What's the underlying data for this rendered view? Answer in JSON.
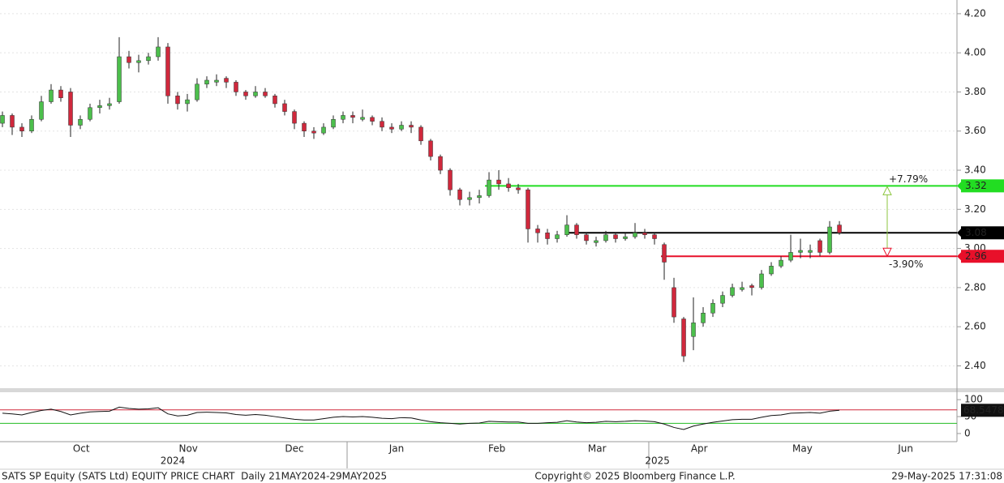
{
  "chart_data": [
    {
      "type": "candlestick",
      "up_color": "#4cbf4c",
      "down_color": "#d0283c",
      "x": [
        0,
        1,
        2,
        3,
        4,
        5,
        6,
        7,
        8,
        9,
        10,
        11,
        12,
        13,
        14,
        15,
        16,
        17,
        18,
        19,
        20,
        21,
        22,
        23,
        24,
        25,
        26,
        27,
        28,
        29,
        30,
        31,
        32,
        33,
        34,
        35,
        36,
        37,
        38,
        39,
        40,
        41,
        42,
        43,
        44,
        45,
        46,
        47,
        48,
        49,
        50,
        51,
        52,
        53,
        54,
        55,
        56,
        57,
        58,
        59,
        60,
        61,
        62,
        63,
        64,
        65,
        66,
        67,
        68,
        69,
        70,
        71,
        72,
        73,
        74,
        75,
        76,
        77,
        78,
        79,
        80,
        81,
        82,
        83,
        84,
        85,
        86
      ],
      "ohlc": [
        [
          3.64,
          3.7,
          3.62,
          3.68
        ],
        [
          3.68,
          3.69,
          3.58,
          3.62
        ],
        [
          3.62,
          3.64,
          3.57,
          3.6
        ],
        [
          3.6,
          3.68,
          3.59,
          3.66
        ],
        [
          3.66,
          3.78,
          3.65,
          3.75
        ],
        [
          3.75,
          3.84,
          3.74,
          3.81
        ],
        [
          3.81,
          3.83,
          3.75,
          3.77
        ],
        [
          3.8,
          3.82,
          3.57,
          3.63
        ],
        [
          3.63,
          3.68,
          3.61,
          3.66
        ],
        [
          3.66,
          3.74,
          3.65,
          3.72
        ],
        [
          3.72,
          3.76,
          3.69,
          3.73
        ],
        [
          3.73,
          3.77,
          3.71,
          3.74
        ],
        [
          3.75,
          4.08,
          3.74,
          3.98
        ],
        [
          3.98,
          4.01,
          3.92,
          3.95
        ],
        [
          3.95,
          3.99,
          3.9,
          3.96
        ],
        [
          3.96,
          4.0,
          3.94,
          3.98
        ],
        [
          3.98,
          4.08,
          3.96,
          4.03
        ],
        [
          4.03,
          4.05,
          3.74,
          3.78
        ],
        [
          3.78,
          3.8,
          3.71,
          3.74
        ],
        [
          3.74,
          3.79,
          3.7,
          3.76
        ],
        [
          3.76,
          3.87,
          3.75,
          3.84
        ],
        [
          3.84,
          3.88,
          3.82,
          3.86
        ],
        [
          3.85,
          3.89,
          3.83,
          3.86
        ],
        [
          3.87,
          3.88,
          3.82,
          3.85
        ],
        [
          3.85,
          3.86,
          3.78,
          3.8
        ],
        [
          3.8,
          3.81,
          3.76,
          3.78
        ],
        [
          3.78,
          3.83,
          3.77,
          3.8
        ],
        [
          3.8,
          3.82,
          3.77,
          3.78
        ],
        [
          3.78,
          3.79,
          3.72,
          3.74
        ],
        [
          3.74,
          3.76,
          3.68,
          3.7
        ],
        [
          3.7,
          3.71,
          3.61,
          3.64
        ],
        [
          3.64,
          3.65,
          3.57,
          3.6
        ],
        [
          3.6,
          3.62,
          3.56,
          3.59
        ],
        [
          3.59,
          3.64,
          3.58,
          3.62
        ],
        [
          3.62,
          3.68,
          3.61,
          3.66
        ],
        [
          3.66,
          3.7,
          3.64,
          3.68
        ],
        [
          3.68,
          3.7,
          3.64,
          3.67
        ],
        [
          3.66,
          3.71,
          3.65,
          3.67
        ],
        [
          3.67,
          3.68,
          3.63,
          3.65
        ],
        [
          3.65,
          3.67,
          3.6,
          3.62
        ],
        [
          3.62,
          3.64,
          3.59,
          3.61
        ],
        [
          3.61,
          3.65,
          3.6,
          3.63
        ],
        [
          3.63,
          3.65,
          3.59,
          3.62
        ],
        [
          3.62,
          3.63,
          3.53,
          3.55
        ],
        [
          3.55,
          3.56,
          3.45,
          3.47
        ],
        [
          3.47,
          3.48,
          3.38,
          3.4
        ],
        [
          3.4,
          3.41,
          3.27,
          3.3
        ],
        [
          3.3,
          3.31,
          3.22,
          3.25
        ],
        [
          3.25,
          3.29,
          3.22,
          3.26
        ],
        [
          3.26,
          3.3,
          3.23,
          3.27
        ],
        [
          3.27,
          3.39,
          3.26,
          3.35
        ],
        [
          3.35,
          3.4,
          3.3,
          3.33
        ],
        [
          3.33,
          3.36,
          3.29,
          3.31
        ],
        [
          3.31,
          3.33,
          3.28,
          3.3
        ],
        [
          3.3,
          3.31,
          3.03,
          3.1
        ],
        [
          3.1,
          3.12,
          3.03,
          3.08
        ],
        [
          3.08,
          3.1,
          3.02,
          3.05
        ],
        [
          3.05,
          3.09,
          3.03,
          3.07
        ],
        [
          3.07,
          3.17,
          3.06,
          3.12
        ],
        [
          3.12,
          3.13,
          3.05,
          3.07
        ],
        [
          3.07,
          3.08,
          3.02,
          3.04
        ],
        [
          3.03,
          3.06,
          3.01,
          3.04
        ],
        [
          3.04,
          3.09,
          3.03,
          3.07
        ],
        [
          3.07,
          3.08,
          3.03,
          3.05
        ],
        [
          3.05,
          3.08,
          3.04,
          3.06
        ],
        [
          3.06,
          3.13,
          3.05,
          3.08
        ],
        [
          3.08,
          3.1,
          3.05,
          3.07
        ],
        [
          3.07,
          3.08,
          3.02,
          3.05
        ],
        [
          3.02,
          3.03,
          2.84,
          2.93
        ],
        [
          2.8,
          2.85,
          2.62,
          2.65
        ],
        [
          2.64,
          2.65,
          2.42,
          2.45
        ],
        [
          2.55,
          2.75,
          2.48,
          2.62
        ],
        [
          2.62,
          2.7,
          2.6,
          2.67
        ],
        [
          2.67,
          2.74,
          2.65,
          2.72
        ],
        [
          2.72,
          2.78,
          2.7,
          2.76
        ],
        [
          2.76,
          2.82,
          2.75,
          2.8
        ],
        [
          2.79,
          2.83,
          2.78,
          2.8
        ],
        [
          2.81,
          2.82,
          2.76,
          2.8
        ],
        [
          2.8,
          2.89,
          2.79,
          2.87
        ],
        [
          2.87,
          2.93,
          2.86,
          2.91
        ],
        [
          2.91,
          2.96,
          2.9,
          2.94
        ],
        [
          2.94,
          3.07,
          2.93,
          2.98
        ],
        [
          2.98,
          3.05,
          2.95,
          2.99
        ],
        [
          2.98,
          3.02,
          2.95,
          2.99
        ],
        [
          3.04,
          3.05,
          2.96,
          2.98
        ],
        [
          2.98,
          3.14,
          2.97,
          3.11
        ],
        [
          3.12,
          3.14,
          3.07,
          3.08
        ]
      ],
      "xlim": [
        -0.25,
        98.08
      ],
      "xticks": [
        {
          "value": 8.1,
          "label": "Oct"
        },
        {
          "value": 19.1,
          "label": "Nov"
        },
        {
          "value": 30,
          "label": "Dec"
        },
        {
          "value": 40.5,
          "label": "Jan"
        },
        {
          "value": 50.8,
          "label": "Feb"
        },
        {
          "value": 61.1,
          "label": "Mar"
        },
        {
          "value": 71.6,
          "label": "Apr"
        },
        {
          "value": 82.2,
          "label": "May"
        },
        {
          "value": 92.8,
          "label": "Jun"
        }
      ],
      "year_labels": [
        {
          "value": 17.5,
          "label": "2024"
        },
        {
          "value": 67.3,
          "label": "2025"
        }
      ],
      "ylim": [
        2.29,
        4.27
      ],
      "yticks": [
        {
          "value": 2.4,
          "label": "2.40"
        },
        {
          "value": 2.6,
          "label": "2.60"
        },
        {
          "value": 2.8,
          "label": "2.80"
        },
        {
          "value": 3.0,
          "label": "3.00"
        },
        {
          "value": 3.2,
          "label": "3.20"
        },
        {
          "value": 3.4,
          "label": "3.40"
        },
        {
          "value": 3.6,
          "label": "3.60"
        },
        {
          "value": 3.8,
          "label": "3.80"
        },
        {
          "value": 4.0,
          "label": "4.00"
        },
        {
          "value": 4.2,
          "label": "4.20"
        }
      ],
      "grid": true,
      "levels": [
        {
          "value": 3.32,
          "label": "3.32",
          "color": "#22dd22",
          "text_color": "#111"
        },
        {
          "value": 3.08,
          "label": "3.08",
          "color": "#000000",
          "text_color": "#fff"
        },
        {
          "value": 2.96,
          "label": "2.96",
          "color": "#e8102a",
          "text_color": "#fff"
        }
      ],
      "annotations": [
        {
          "text": "+7.79%",
          "color": "#8cc63f"
        },
        {
          "text": "-3.90%",
          "color": "#e8102a"
        }
      ]
    },
    {
      "type": "line",
      "series": [
        {
          "color": "#111111",
          "values": [
            60,
            58,
            55,
            62,
            68,
            72,
            65,
            55,
            60,
            64,
            65,
            66,
            78,
            74,
            72,
            73,
            76,
            58,
            52,
            54,
            62,
            63,
            62,
            61,
            56,
            54,
            56,
            54,
            50,
            46,
            42,
            40,
            40,
            44,
            48,
            50,
            49,
            50,
            48,
            45,
            44,
            47,
            46,
            40,
            35,
            32,
            30,
            28,
            30,
            31,
            36,
            35,
            34,
            34,
            30,
            30,
            32,
            33,
            38,
            34,
            32,
            33,
            36,
            35,
            36,
            38,
            37,
            35,
            28,
            18,
            12,
            22,
            28,
            33,
            37,
            41,
            42,
            42,
            48,
            53,
            55,
            60,
            61,
            62,
            60,
            66,
            68.5478
          ]
        }
      ],
      "ylim": [
        -24,
        119.5
      ],
      "yticks": [
        0,
        50,
        100
      ],
      "levels": [
        {
          "value": 70,
          "color": "#d0283c"
        },
        {
          "value": 30,
          "color": "#22bb22"
        }
      ],
      "last_label": "68.5478"
    }
  ],
  "footer": {
    "left": "SATS SP Equity (SATS Ltd) EQUITY PRICE CHART  Daily 21MAY2024-29MAY2025",
    "center": "Copyright© 2025 Bloomberg Finance L.P.",
    "right": "29-May-2025 17:31:08"
  }
}
